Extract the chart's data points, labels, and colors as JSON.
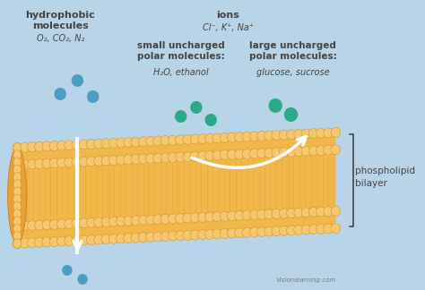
{
  "bg_color": "#b8d4e8",
  "bilayer_fill": "#f0b84a",
  "bilayer_head_fill": "#f5c870",
  "bilayer_head_edge": "#d4952a",
  "bilayer_tail_color": "#e8a830",
  "text_hydrophobic_title": "hydrophobic\nmolecules",
  "text_hydrophobic_sub": "O₂, CO₂, N₂",
  "text_ions_title": "ions",
  "text_ions_sub": "Cl⁻, K⁺, Na⁺",
  "text_small_title": "small uncharged\npolar molecules:",
  "text_small_sub": "H₂O, ethanol",
  "text_large_title": "large uncharged\npolar molecules:",
  "text_large_sub": "glucose, sucrose",
  "text_bilayer": "phospholipid\nbilayer",
  "blue_dot_color": "#4a9ec4",
  "teal_dot_color": "#2aaa88",
  "white_color": "#ffffff",
  "label_color": "#444444",
  "visionlearning_text": "Visionlearning.com"
}
